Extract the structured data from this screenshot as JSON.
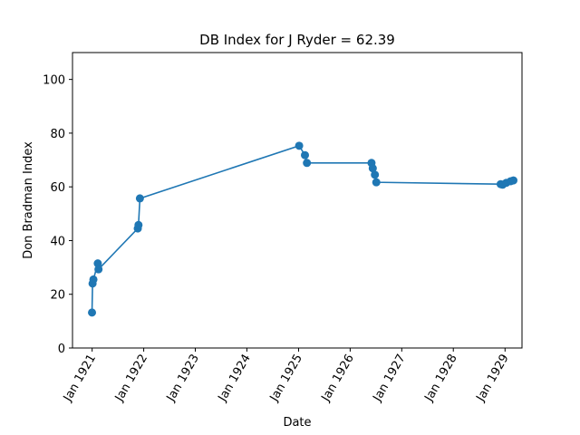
{
  "chart_data": {
    "type": "line",
    "title": "DB Index for J Ryder = 62.39",
    "xlabel": "Date",
    "ylabel": "Don Bradman Index",
    "xlim": [
      "1920-08-15",
      "1929-05-01"
    ],
    "ylim": [
      0,
      110
    ],
    "yticks": [
      0,
      20,
      40,
      60,
      80,
      100
    ],
    "xticks": [
      {
        "date": "1921-01-01",
        "label": "Jan 1921"
      },
      {
        "date": "1922-01-01",
        "label": "Jan 1922"
      },
      {
        "date": "1923-01-01",
        "label": "Jan 1923"
      },
      {
        "date": "1924-01-01",
        "label": "Jan 1924"
      },
      {
        "date": "1925-01-01",
        "label": "Jan 1925"
      },
      {
        "date": "1926-01-01",
        "label": "Jan 1926"
      },
      {
        "date": "1927-01-01",
        "label": "Jan 1927"
      },
      {
        "date": "1928-01-01",
        "label": "Jan 1928"
      },
      {
        "date": "1929-01-01",
        "label": "Jan 1929"
      }
    ],
    "grid": false,
    "color": "#1f77b4",
    "series": [
      {
        "x": [
          "1920-12-31",
          "1921-01-04",
          "1921-01-10",
          "1921-02-10",
          "1921-02-15",
          "1921-11-20",
          "1921-11-25",
          "1921-12-05",
          "1925-01-05",
          "1925-02-15",
          "1925-03-01",
          "1926-06-01",
          "1926-06-10",
          "1926-06-25",
          "1926-07-05",
          "1928-12-01",
          "1928-12-15",
          "1929-01-10",
          "1929-02-10",
          "1929-03-01"
        ],
        "y": [
          13.2,
          24.0,
          25.5,
          31.5,
          29.3,
          44.5,
          45.8,
          55.7,
          75.3,
          71.8,
          68.9,
          68.9,
          66.9,
          64.5,
          61.7,
          61.0,
          60.8,
          61.5,
          62.1,
          62.39
        ]
      }
    ]
  }
}
